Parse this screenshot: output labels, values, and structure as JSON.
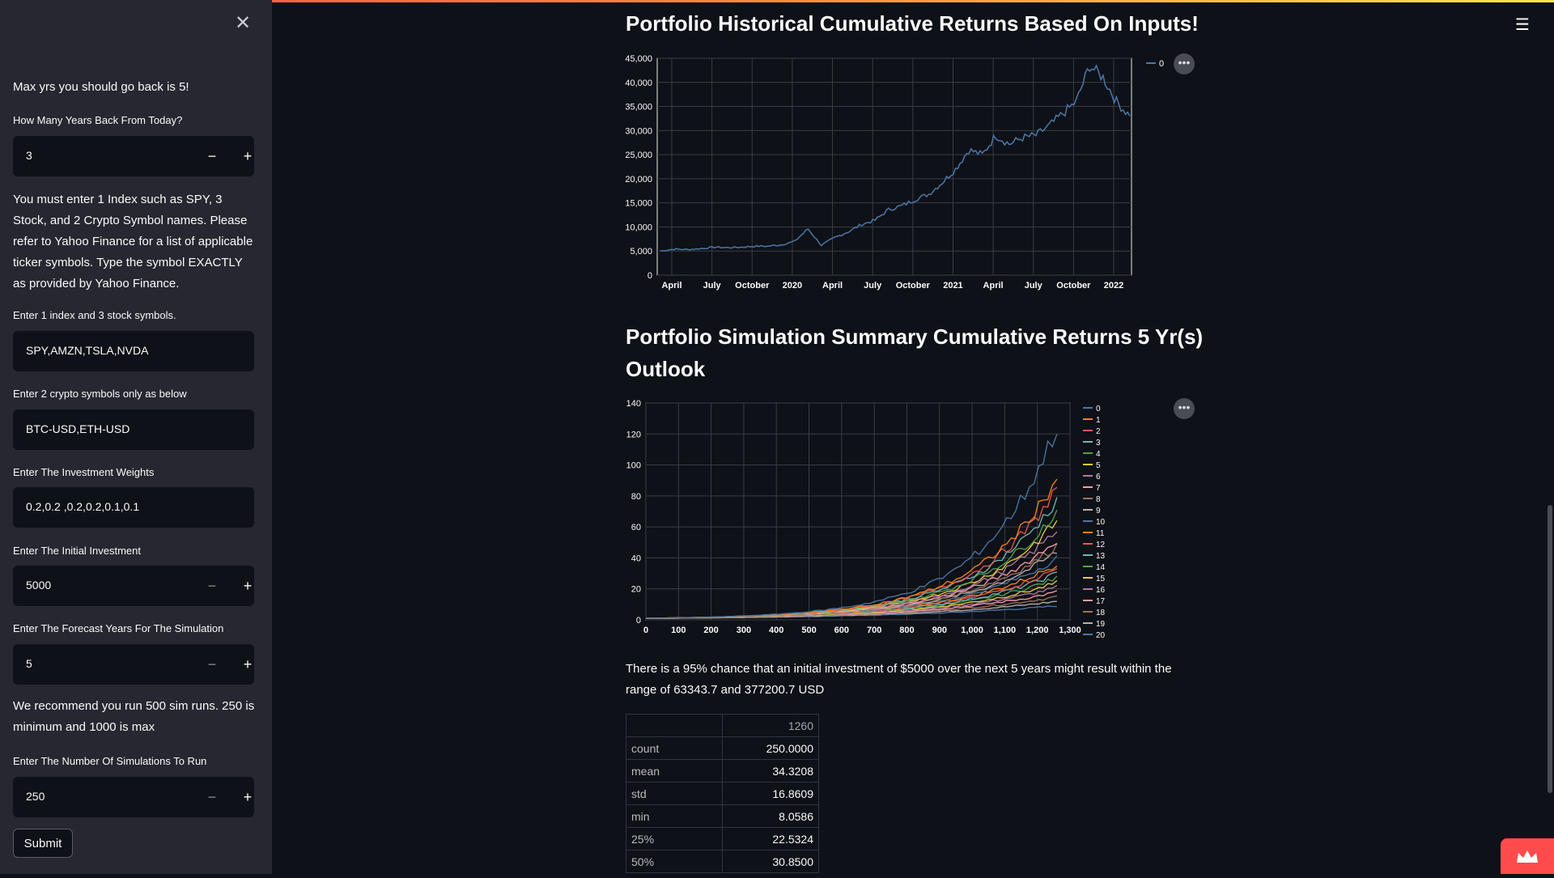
{
  "sidebar": {
    "close_icon": "close-icon",
    "intro": "Max yrs you should go back is 5!",
    "years_label": "How Many Years Back From Today?",
    "years_value": "3",
    "instructions": "You must enter 1 Index such as SPY, 3 Stock, and 2 Crypto Symbol names. Please refer to Yahoo Finance for a list of applicable ticker symbols. Type the symbol EXACTLY as provided by Yahoo Finance.",
    "stocks_label": "Enter 1 index and 3 stock symbols.",
    "stocks_value": "SPY,AMZN,TSLA,NVDA",
    "crypto_label": "Enter 2 crypto symbols only as below",
    "crypto_value": "BTC-USD,ETH-USD",
    "weights_label": "Enter The Investment Weights",
    "weights_value": "0.2,0.2 ,0.2,0.2,0.1,0.1",
    "initial_label": "Enter The Initial Investment",
    "initial_value": "5000",
    "forecast_label": "Enter The Forecast Years For The Simulation",
    "forecast_value": "5",
    "recommend": "We recommend you run 500 sim runs. 250 is minimum and 1000 is max",
    "sims_label": "Enter The Number Of Simulations To Run",
    "sims_value": "250",
    "submit_label": "Submit",
    "minus": "−",
    "plus": "+"
  },
  "main": {
    "title1": "Portfolio Historical Cumulative Returns Based On Inputs!",
    "title2_line1": "Portfolio Simulation Summary Cumulative Returns 5 Yr(s)",
    "title2_line2": "Outlook",
    "summary": "There is a 95% chance that an initial investment of $5000 over the next 5 years might result within the range of 63343.7 and 377200.7 USD",
    "stats_header": "1260",
    "stats_rows": [
      {
        "label": "count",
        "value": "250.0000"
      },
      {
        "label": "mean",
        "value": "34.3208"
      },
      {
        "label": "std",
        "value": "16.8609"
      },
      {
        "label": "min",
        "value": "8.0586"
      },
      {
        "label": "25%",
        "value": "22.5324"
      },
      {
        "label": "50%",
        "value": "30.8500"
      }
    ],
    "menu_icon": "hamburger-menu-icon",
    "more_icon": "more-options-icon"
  },
  "colors": {
    "background": "#0e1117",
    "sidebar": "#262730",
    "series0": "#4c78a8",
    "accent": "#ff4b4b"
  },
  "chart_data": [
    {
      "type": "line",
      "x_ticks": [
        "April",
        "July",
        "October",
        "2020",
        "April",
        "July",
        "October",
        "2021",
        "April",
        "July",
        "October",
        "2022"
      ],
      "y_ticks": [
        "0",
        "5,000",
        "10,000",
        "15,000",
        "20,000",
        "25,000",
        "30,000",
        "35,000",
        "40,000",
        "45,000"
      ],
      "ylim": [
        0,
        45000
      ],
      "grid": true,
      "legend_position": "top-right",
      "series": [
        {
          "name": "0",
          "points": [
            [
              "2019-03",
              5000
            ],
            [
              "2019-04",
              5400
            ],
            [
              "2019-05",
              5300
            ],
            [
              "2019-06",
              5500
            ],
            [
              "2019-07",
              5800
            ],
            [
              "2019-08",
              5700
            ],
            [
              "2019-09",
              5800
            ],
            [
              "2019-10",
              6000
            ],
            [
              "2019-11",
              6000
            ],
            [
              "2019-12",
              6300
            ],
            [
              "2020-01",
              7000
            ],
            [
              "2020-02",
              9600
            ],
            [
              "2020-03",
              6200
            ],
            [
              "2020-04",
              7800
            ],
            [
              "2020-05",
              9000
            ],
            [
              "2020-06",
              10500
            ],
            [
              "2020-07",
              11400
            ],
            [
              "2020-08",
              13600
            ],
            [
              "2020-09",
              14400
            ],
            [
              "2020-10",
              15700
            ],
            [
              "2020-11",
              16800
            ],
            [
              "2020-12",
              19200
            ],
            [
              "2021-01",
              22000
            ],
            [
              "2021-02",
              26000
            ],
            [
              "2021-03",
              25000
            ],
            [
              "2021-04",
              29000
            ],
            [
              "2021-05",
              27200
            ],
            [
              "2021-06",
              28500
            ],
            [
              "2021-07",
              29000
            ],
            [
              "2021-08",
              31000
            ],
            [
              "2021-09",
              33500
            ],
            [
              "2021-10",
              36000
            ],
            [
              "2021-11",
              43500
            ],
            [
              "2021-12",
              41000
            ],
            [
              "2022-01",
              36000
            ],
            [
              "2022-02",
              33000
            ]
          ]
        }
      ]
    },
    {
      "type": "line",
      "x_ticks": [
        "0",
        "100",
        "200",
        "300",
        "400",
        "500",
        "600",
        "700",
        "800",
        "900",
        "1,000",
        "1,100",
        "1,200",
        "1,300"
      ],
      "y_ticks": [
        "0",
        "20",
        "40",
        "60",
        "80",
        "100",
        "120",
        "140"
      ],
      "xlim": [
        0,
        1300
      ],
      "ylim": [
        0,
        140
      ],
      "grid": true,
      "legend_position": "top-right",
      "legend": [
        "0",
        "1",
        "2",
        "3",
        "4",
        "5",
        "6",
        "7",
        "8",
        "9",
        "10",
        "11",
        "12",
        "13",
        "14",
        "15",
        "16",
        "17",
        "18",
        "19",
        "20"
      ],
      "series_colors": [
        "#4c78a8",
        "#f58518",
        "#e45756",
        "#72b7b2",
        "#54a24b",
        "#eeca3b",
        "#b279a2",
        "#ff9da6",
        "#9d755d",
        "#bab0ac",
        "#4c78a8",
        "#f58518",
        "#e45756",
        "#72b7b2",
        "#54a24b",
        "#eeca3b",
        "#b279a2",
        "#ff9da6",
        "#9d755d",
        "#bab0ac",
        "#4c78a8"
      ],
      "final_values": [
        125,
        92,
        85,
        78,
        70,
        64,
        58,
        52,
        48,
        44,
        40,
        36,
        33,
        30,
        27,
        24,
        21,
        18,
        15,
        12,
        9
      ]
    }
  ]
}
